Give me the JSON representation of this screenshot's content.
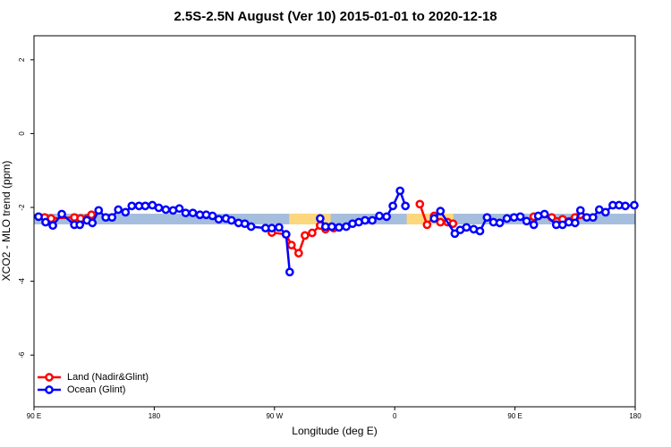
{
  "chart_data": {
    "type": "line",
    "title": "2.5S-2.5N August (Ver 10)   2015-01-01 to 2020-12-18",
    "x_label": "Longitude (deg E)",
    "y_label": "XCO2 - MLO trend (ppm)",
    "xlim": [
      90,
      540
    ],
    "ylim": [
      -7.4,
      2.65
    ],
    "xticks": [
      {
        "value": 90,
        "label": "90 E"
      },
      {
        "value": 180,
        "label": "180"
      },
      {
        "value": 270,
        "label": "90 W"
      },
      {
        "value": 360,
        "label": "0"
      },
      {
        "value": 450,
        "label": "90 E"
      },
      {
        "value": 540,
        "label": "180"
      }
    ],
    "yticks": [
      -6,
      -4,
      -2,
      0,
      2
    ],
    "reference_band": {
      "ylim": [
        -2.46,
        -2.17
      ],
      "color": "#a6bedd"
    },
    "highlight_bands": [
      {
        "xlim": [
          281,
          312
        ],
        "color": "#fdd77c"
      },
      {
        "xlim": [
          369,
          404
        ],
        "color": "#fdd77c"
      }
    ],
    "legend": "bottom-left",
    "series": [
      {
        "name": "Land (Nadir&Glint)",
        "color": "#ff0000",
        "x": [
          98,
          102.8,
          120.2,
          124.9,
          129.6,
          133,
          null,
          268,
          278.7,
          282.7,
          288.1,
          292.8,
          298.2,
          304.2,
          308.2,
          314.3,
          null,
          378.8,
          384.2,
          389.5,
          394.2,
          399.6,
          403.6,
          null,
          464.1,
          477.5,
          485.6,
          495,
          499
        ],
        "values": [
          -2.27,
          -2.3,
          -2.27,
          -2.3,
          -2.3,
          -2.2,
          null,
          -2.68,
          -2.73,
          -3.02,
          -3.24,
          -2.76,
          -2.69,
          -2.49,
          -2.59,
          -2.56,
          null,
          -1.91,
          -2.47,
          -2.23,
          -2.4,
          -2.4,
          -2.44,
          null,
          -2.25,
          -2.27,
          -2.32,
          -2.27,
          -2.2
        ]
      },
      {
        "name": "Ocean (Glint)",
        "color": "#0000ff",
        "x": [
          93.4,
          98.7,
          104.1,
          110.8,
          120.2,
          124.3,
          129.6,
          133.7,
          138.4,
          143.7,
          148.4,
          153.1,
          158.5,
          163.2,
          168.6,
          173.3,
          178.6,
          183.4,
          188.7,
          194.1,
          198.8,
          203.5,
          208.9,
          214.2,
          218.9,
          223.6,
          228.3,
          233.7,
          237.8,
          243.1,
          247.8,
          252.5,
          263.3,
          268,
          273.4,
          278.7,
          281.4,
          null,
          304.2,
          308.2,
          312.9,
          318.3,
          323.7,
          328.4,
          333.1,
          337.8,
          343.2,
          348.5,
          353.9,
          358.6,
          364,
          368,
          null,
          389.5,
          394.2,
          405,
          409,
          413.7,
          419.1,
          423.8,
          429.1,
          433.9,
          438.6,
          444,
          449.3,
          454,
          458.7,
          464.1,
          467.4,
          472.1,
          480.9,
          485.6,
          490.3,
          495,
          499,
          503.7,
          508.4,
          513.1,
          517.8,
          523.2,
          527.9,
          532.6,
          539.3
        ],
        "values": [
          -2.25,
          -2.4,
          -2.49,
          -2.18,
          -2.47,
          -2.47,
          -2.35,
          -2.42,
          -2.08,
          -2.27,
          -2.27,
          -2.06,
          -2.13,
          -1.96,
          -1.96,
          -1.96,
          -1.94,
          -2.01,
          -2.06,
          -2.08,
          -2.03,
          -2.15,
          -2.15,
          -2.2,
          -2.2,
          -2.23,
          -2.32,
          -2.3,
          -2.35,
          -2.42,
          -2.44,
          -2.52,
          -2.56,
          -2.56,
          -2.54,
          -2.73,
          -3.75,
          null,
          -2.3,
          -2.52,
          -2.52,
          -2.54,
          -2.52,
          -2.44,
          -2.4,
          -2.35,
          -2.35,
          -2.23,
          -2.25,
          -1.96,
          -1.55,
          -1.96,
          null,
          -2.3,
          -2.1,
          -2.71,
          -2.61,
          -2.54,
          -2.59,
          -2.64,
          -2.27,
          -2.4,
          -2.42,
          -2.3,
          -2.27,
          -2.25,
          -2.37,
          -2.47,
          -2.23,
          -2.18,
          -2.47,
          -2.47,
          -2.4,
          -2.42,
          -2.08,
          -2.27,
          -2.27,
          -2.06,
          -2.13,
          -1.94,
          -1.94,
          -1.96,
          -1.94
        ]
      }
    ]
  }
}
